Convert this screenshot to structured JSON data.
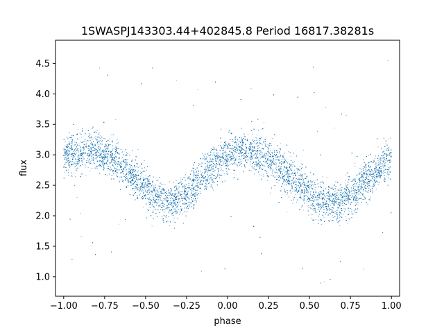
{
  "chart_data": {
    "type": "scatter",
    "title": "1SWASPJ143303.44+402845.8 Period 16817.38281s",
    "xlabel": "phase",
    "ylabel": "flux",
    "xlim": [
      -1.05,
      1.05
    ],
    "ylim": [
      0.68,
      4.88
    ],
    "xticks": [
      -1.0,
      -0.75,
      -0.5,
      -0.25,
      0.0,
      0.25,
      0.5,
      0.75,
      1.0
    ],
    "xtick_labels": [
      "−1.00",
      "−0.75",
      "−0.50",
      "−0.25",
      "0.00",
      "0.25",
      "0.50",
      "0.75",
      "1.00"
    ],
    "yticks": [
      1.0,
      1.5,
      2.0,
      2.5,
      3.0,
      3.5,
      4.0,
      4.5
    ],
    "ytick_labels": [
      "1.0",
      "1.5",
      "2.0",
      "2.5",
      "3.0",
      "3.5",
      "4.0",
      "4.5"
    ],
    "grid": false,
    "marker_color": "#1f77b4",
    "series": [
      {
        "x": [
          -1.0,
          -0.9,
          -0.85,
          -0.8,
          -0.7,
          -0.6,
          -0.5,
          -0.45,
          -0.4,
          -0.35,
          -0.3,
          -0.25,
          -0.2,
          -0.1,
          0.0,
          0.05,
          0.1,
          0.15,
          0.2,
          0.3,
          0.4,
          0.5,
          0.55,
          0.6,
          0.65,
          0.7,
          0.75,
          0.8,
          0.9,
          1.0
        ],
        "y": [
          2.98,
          3.05,
          3.07,
          3.05,
          2.95,
          2.72,
          2.45,
          2.32,
          2.25,
          2.22,
          2.24,
          2.32,
          2.48,
          2.78,
          3.0,
          3.04,
          3.05,
          3.04,
          3.0,
          2.85,
          2.62,
          2.38,
          2.27,
          2.22,
          2.21,
          2.25,
          2.32,
          2.45,
          2.7,
          2.95
        ],
        "scatter_spread": 0.16,
        "point_count": 16000
      }
    ]
  }
}
